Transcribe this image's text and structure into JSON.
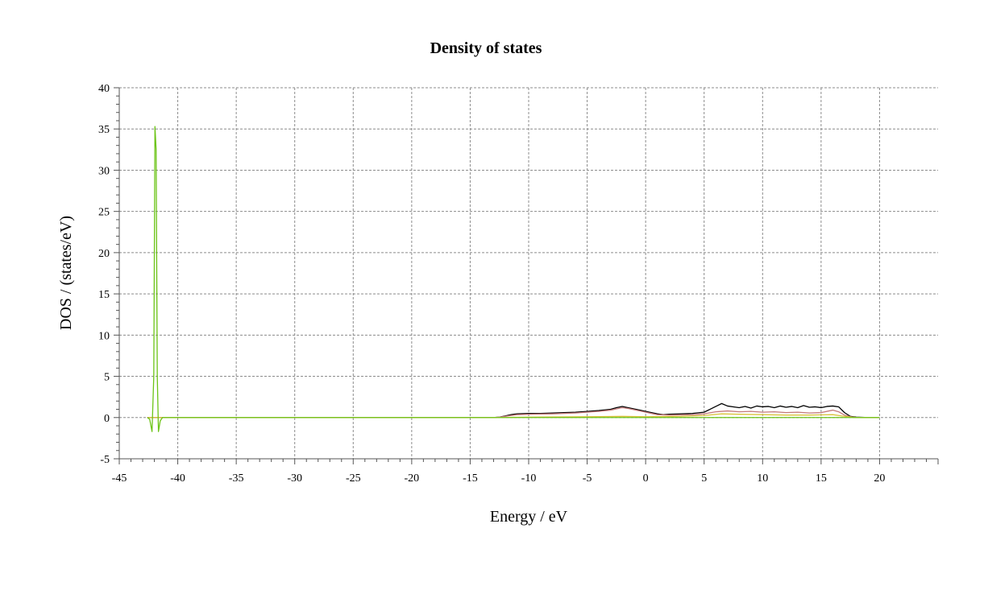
{
  "chart_data": {
    "type": "line",
    "title": "Density of states",
    "xlabel": "Energy / eV",
    "ylabel": "DOS / (states/eV)",
    "xlim": [
      -45,
      25
    ],
    "ylim": [
      -5,
      40
    ],
    "xticks": [
      -45,
      -40,
      -35,
      -30,
      -25,
      -20,
      -15,
      -10,
      -5,
      0,
      5,
      10,
      15,
      20
    ],
    "yticks": [
      -5,
      0,
      5,
      10,
      15,
      20,
      25,
      30,
      35,
      40
    ],
    "grid": true,
    "legend": "none",
    "series": [
      {
        "color": "#000000",
        "points": [
          [
            -42.6,
            0
          ],
          [
            -41.0,
            0
          ],
          [
            -13.0,
            0
          ],
          [
            -12.5,
            0.05
          ],
          [
            -12.0,
            0.2
          ],
          [
            -11.5,
            0.35
          ],
          [
            -11.0,
            0.45
          ],
          [
            -10.0,
            0.5
          ],
          [
            -9.0,
            0.5
          ],
          [
            -8.0,
            0.55
          ],
          [
            -7.0,
            0.6
          ],
          [
            -6.0,
            0.65
          ],
          [
            -5.0,
            0.75
          ],
          [
            -4.0,
            0.85
          ],
          [
            -3.0,
            1.0
          ],
          [
            -2.5,
            1.2
          ],
          [
            -2.0,
            1.35
          ],
          [
            -1.5,
            1.2
          ],
          [
            -1.0,
            1.05
          ],
          [
            -0.5,
            0.9
          ],
          [
            0.0,
            0.75
          ],
          [
            0.5,
            0.6
          ],
          [
            1.0,
            0.45
          ],
          [
            1.5,
            0.35
          ],
          [
            2.0,
            0.4
          ],
          [
            3.0,
            0.45
          ],
          [
            4.0,
            0.5
          ],
          [
            5.0,
            0.65
          ],
          [
            5.5,
            1.0
          ],
          [
            6.0,
            1.35
          ],
          [
            6.5,
            1.7
          ],
          [
            7.0,
            1.4
          ],
          [
            7.5,
            1.3
          ],
          [
            8.0,
            1.2
          ],
          [
            8.5,
            1.35
          ],
          [
            9.0,
            1.15
          ],
          [
            9.5,
            1.4
          ],
          [
            10.0,
            1.3
          ],
          [
            10.5,
            1.35
          ],
          [
            11.0,
            1.2
          ],
          [
            11.5,
            1.4
          ],
          [
            12.0,
            1.25
          ],
          [
            12.5,
            1.35
          ],
          [
            13.0,
            1.2
          ],
          [
            13.5,
            1.45
          ],
          [
            14.0,
            1.25
          ],
          [
            14.5,
            1.3
          ],
          [
            15.0,
            1.2
          ],
          [
            15.5,
            1.35
          ],
          [
            16.0,
            1.4
          ],
          [
            16.5,
            1.3
          ],
          [
            17.0,
            0.6
          ],
          [
            17.5,
            0.15
          ],
          [
            18.0,
            0.05
          ],
          [
            19.0,
            0
          ],
          [
            20.0,
            0
          ]
        ]
      },
      {
        "color": "#c47a7a",
        "points": [
          [
            -42.6,
            0
          ],
          [
            -13.0,
            0
          ],
          [
            -12.5,
            0.05
          ],
          [
            -12.0,
            0.15
          ],
          [
            -11.0,
            0.35
          ],
          [
            -10.0,
            0.4
          ],
          [
            -8.0,
            0.45
          ],
          [
            -6.0,
            0.55
          ],
          [
            -5.0,
            0.65
          ],
          [
            -4.0,
            0.75
          ],
          [
            -3.0,
            0.9
          ],
          [
            -2.0,
            1.2
          ],
          [
            -1.5,
            1.1
          ],
          [
            -1.0,
            0.95
          ],
          [
            0.0,
            0.65
          ],
          [
            1.0,
            0.35
          ],
          [
            2.0,
            0.3
          ],
          [
            4.0,
            0.35
          ],
          [
            5.0,
            0.45
          ],
          [
            6.0,
            0.7
          ],
          [
            7.0,
            0.8
          ],
          [
            8.0,
            0.7
          ],
          [
            9.0,
            0.75
          ],
          [
            10.0,
            0.65
          ],
          [
            11.0,
            0.7
          ],
          [
            12.0,
            0.6
          ],
          [
            13.0,
            0.65
          ],
          [
            14.0,
            0.55
          ],
          [
            15.0,
            0.6
          ],
          [
            16.0,
            0.9
          ],
          [
            16.5,
            0.7
          ],
          [
            17.0,
            0.3
          ],
          [
            17.5,
            0.1
          ],
          [
            18.0,
            0
          ],
          [
            20.0,
            0
          ]
        ]
      },
      {
        "color": "#d9c23b",
        "points": [
          [
            -42.6,
            0
          ],
          [
            -13.0,
            0
          ],
          [
            -10.0,
            0.05
          ],
          [
            -5.0,
            0.1
          ],
          [
            -2.0,
            0.15
          ],
          [
            0.0,
            0.1
          ],
          [
            3.0,
            0.15
          ],
          [
            5.0,
            0.25
          ],
          [
            6.5,
            0.45
          ],
          [
            8.0,
            0.4
          ],
          [
            10.0,
            0.35
          ],
          [
            12.0,
            0.3
          ],
          [
            14.0,
            0.3
          ],
          [
            16.0,
            0.35
          ],
          [
            17.0,
            0.15
          ],
          [
            18.0,
            0
          ],
          [
            20.0,
            0
          ]
        ]
      },
      {
        "color": "#6cc417",
        "points": [
          [
            -42.6,
            0
          ],
          [
            -42.4,
            -0.2
          ],
          [
            -42.2,
            -1.7
          ],
          [
            -42.05,
            5
          ],
          [
            -41.95,
            35.3
          ],
          [
            -41.85,
            32.5
          ],
          [
            -41.75,
            5
          ],
          [
            -41.65,
            -1.7
          ],
          [
            -41.5,
            -0.4
          ],
          [
            -41.3,
            0
          ],
          [
            -13.0,
            0
          ],
          [
            20.0,
            0
          ]
        ]
      }
    ]
  }
}
